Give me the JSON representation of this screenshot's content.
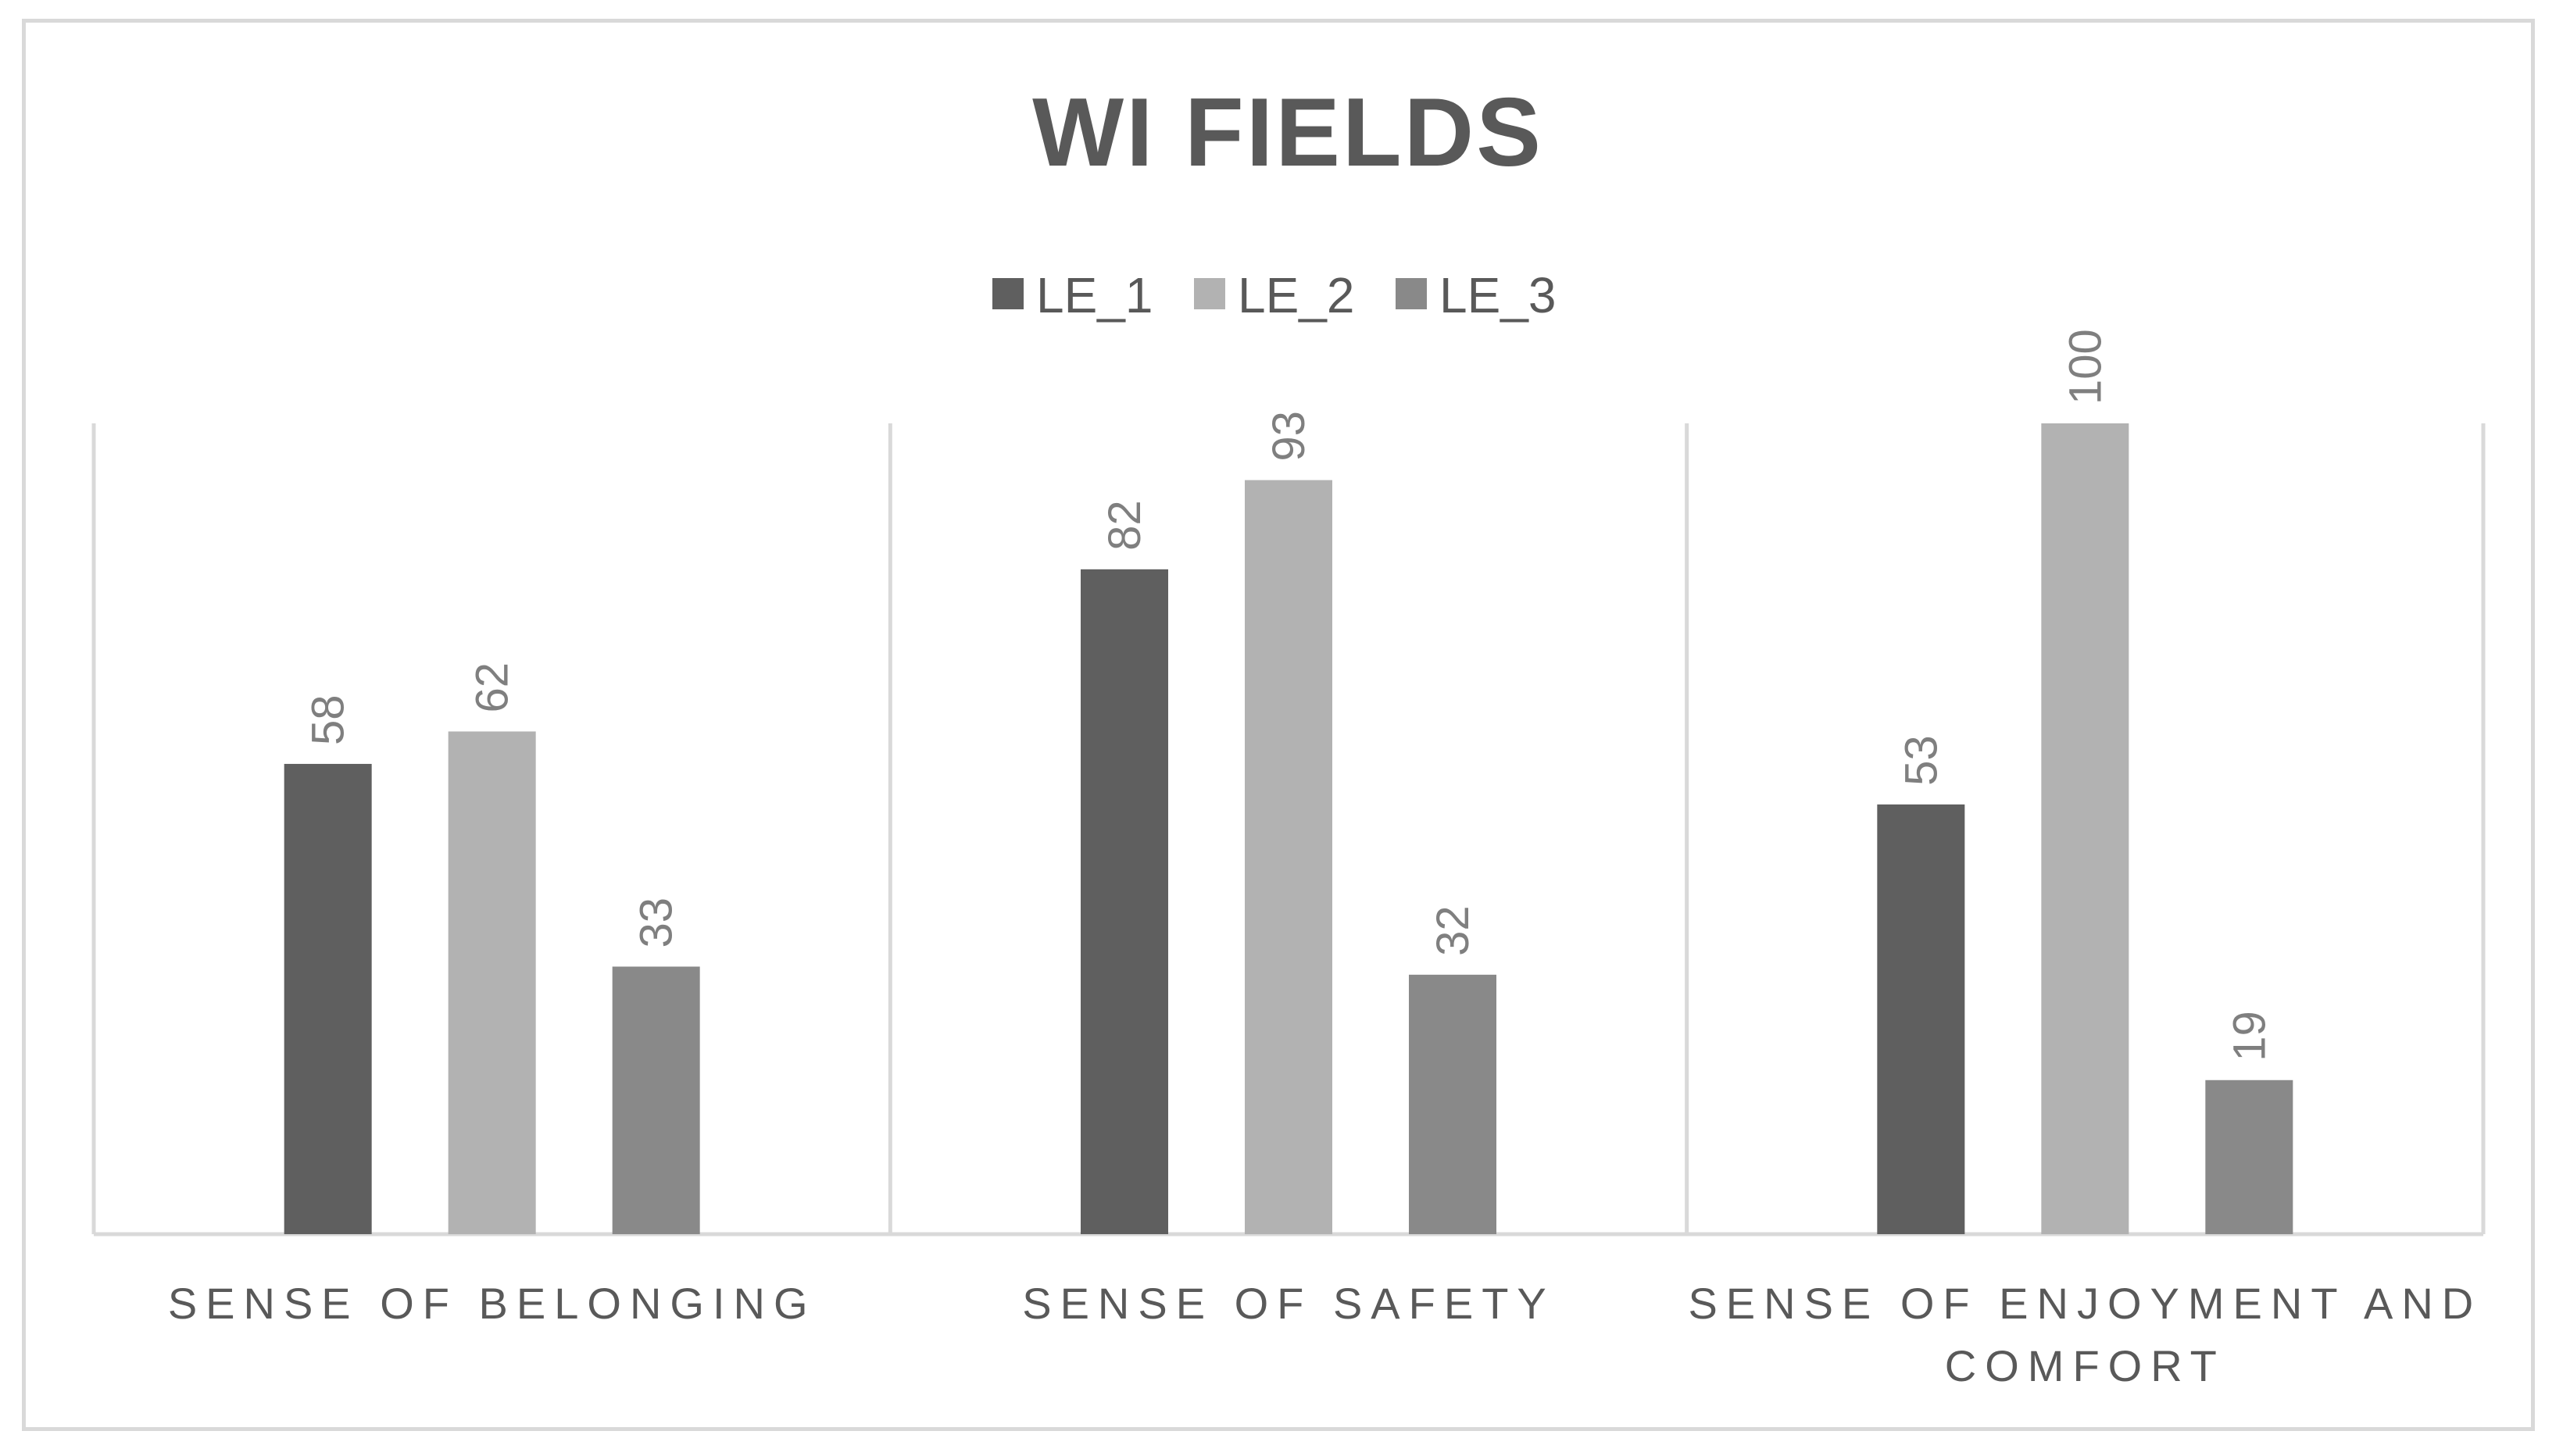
{
  "chart_data": {
    "type": "bar",
    "title": "WI FIELDS",
    "categories": [
      [
        "SENSE OF BELONGING"
      ],
      [
        "SENSE OF SAFETY"
      ],
      [
        "SENSE OF  ENJOYMENT AND",
        "COMFORT"
      ]
    ],
    "series": [
      {
        "name": "LE_1",
        "color": "#5f5f5f",
        "values": [
          58,
          82,
          53
        ]
      },
      {
        "name": "LE_2",
        "color": "#b2b2b2",
        "values": [
          62,
          93,
          100
        ]
      },
      {
        "name": "LE_3",
        "color": "#898989",
        "values": [
          33,
          32,
          19
        ]
      }
    ],
    "ylim": [
      0,
      100
    ],
    "legend_position": "top",
    "grid": false,
    "data_labels": true
  }
}
